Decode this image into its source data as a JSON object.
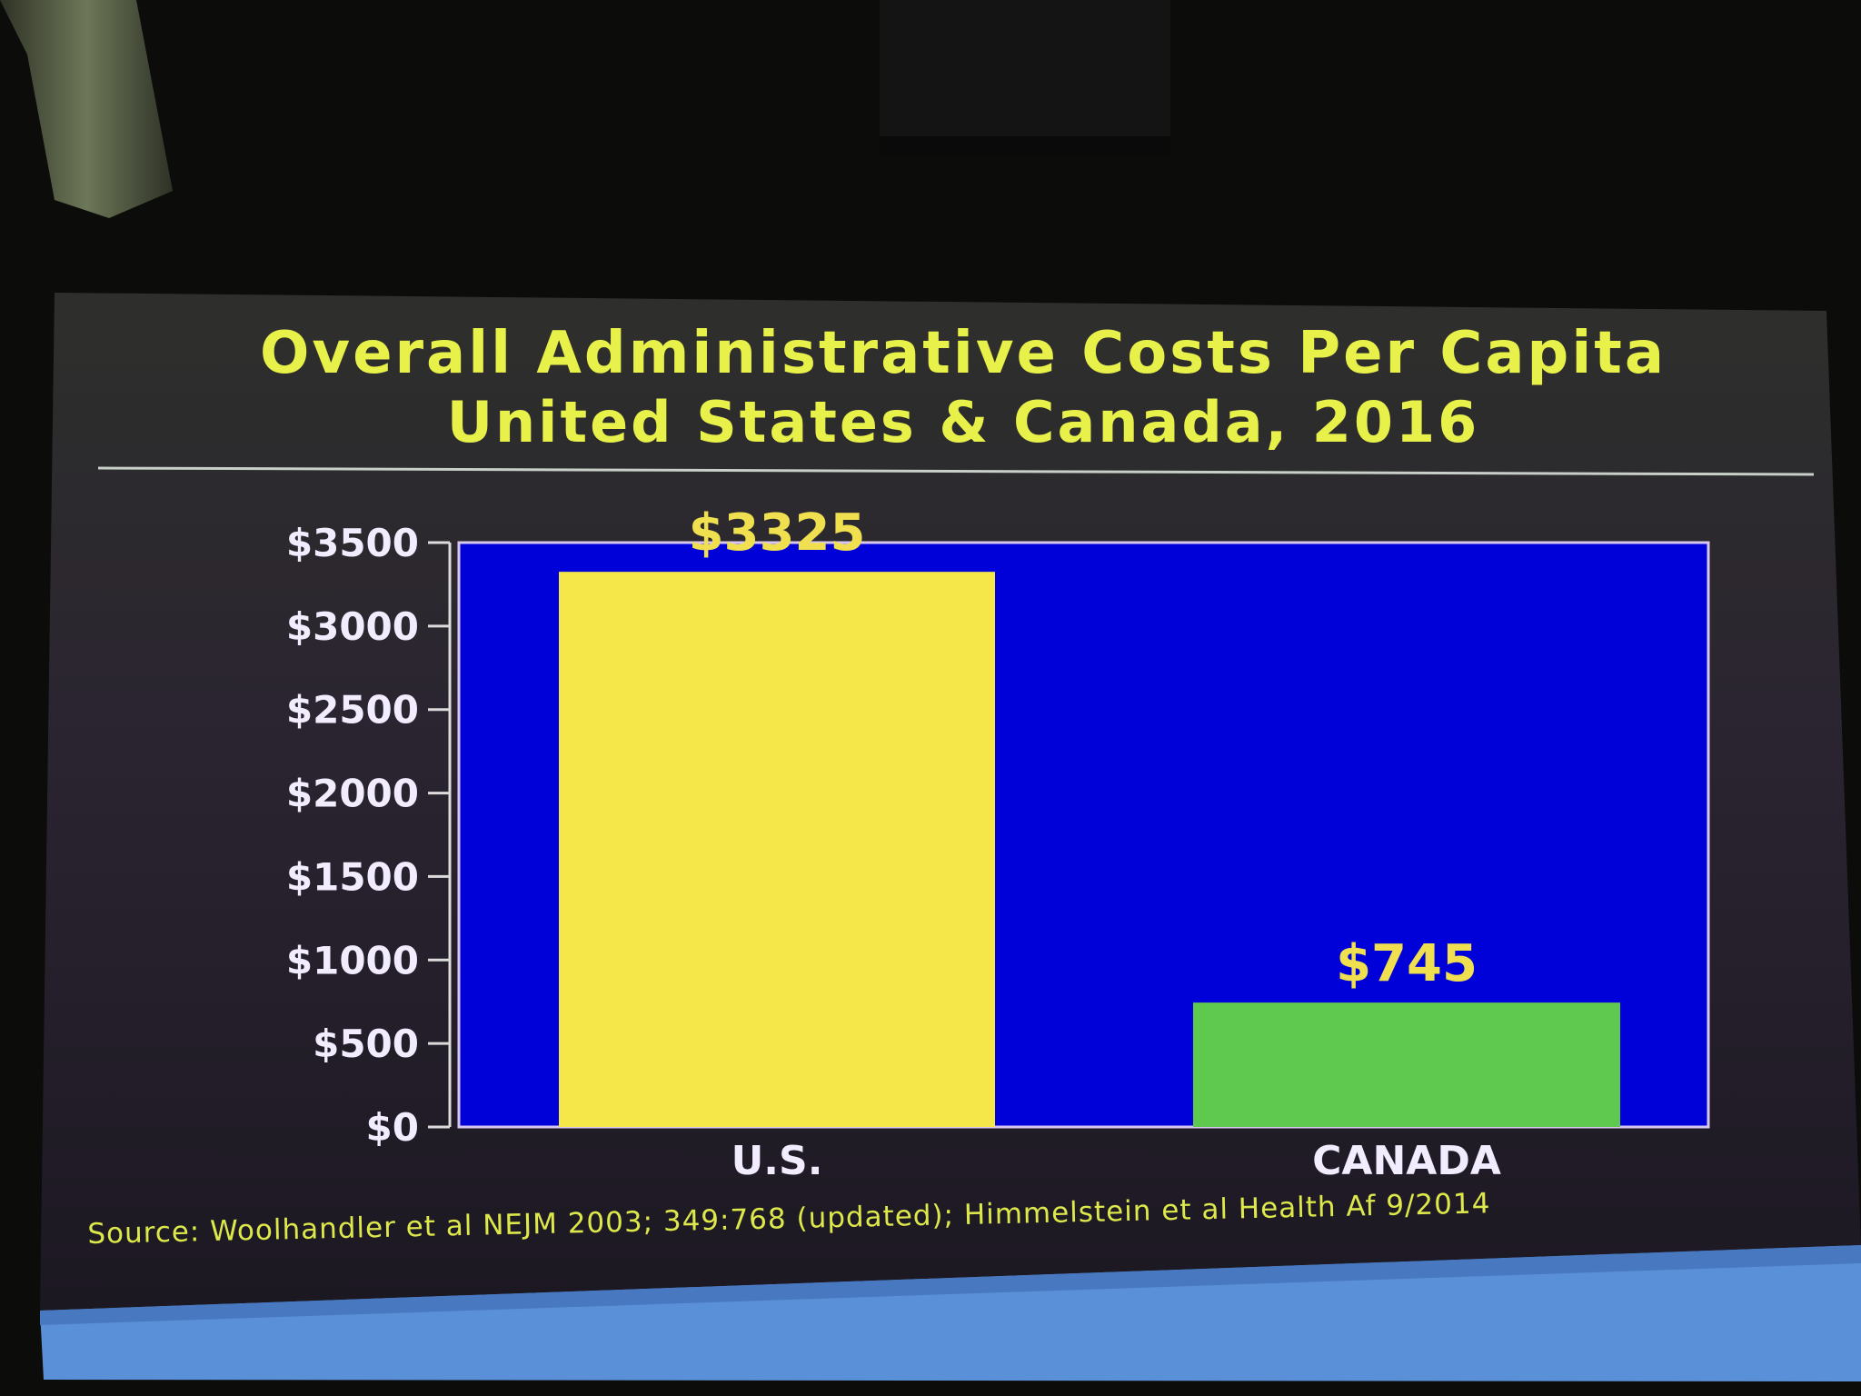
{
  "slide": {
    "title_line1": "Overall Administrative Costs Per Capita",
    "title_line2": "United  States & Canada, 2016",
    "source": "Source:  Woolhandler et al NEJM 2003; 349:768 (updated); Himmelstein et al Health Af 9/2014"
  },
  "colors": {
    "title": "#e8f04a",
    "plot_background": "#0000d8",
    "us_bar": "#f5e64a",
    "canada_bar": "#5fc84e",
    "data_label": "#f0e050",
    "axis_text": "#f2ecff"
  },
  "chart_data": {
    "type": "bar",
    "categories": [
      "U.S.",
      "CANADA"
    ],
    "values": [
      3325,
      745
    ],
    "value_labels": [
      "$3325",
      "$745"
    ],
    "ylim": [
      0,
      3500
    ],
    "yticks": [
      {
        "value": 0,
        "label": "$0"
      },
      {
        "value": 500,
        "label": "$500"
      },
      {
        "value": 1000,
        "label": "$1000"
      },
      {
        "value": 1500,
        "label": "$1500"
      },
      {
        "value": 2000,
        "label": "$2000"
      },
      {
        "value": 2500,
        "label": "$2500"
      },
      {
        "value": 3000,
        "label": "$3000"
      },
      {
        "value": 3500,
        "label": "$3500"
      }
    ],
    "title": "",
    "xlabel": "",
    "ylabel": "",
    "grid": false,
    "legend": false
  }
}
